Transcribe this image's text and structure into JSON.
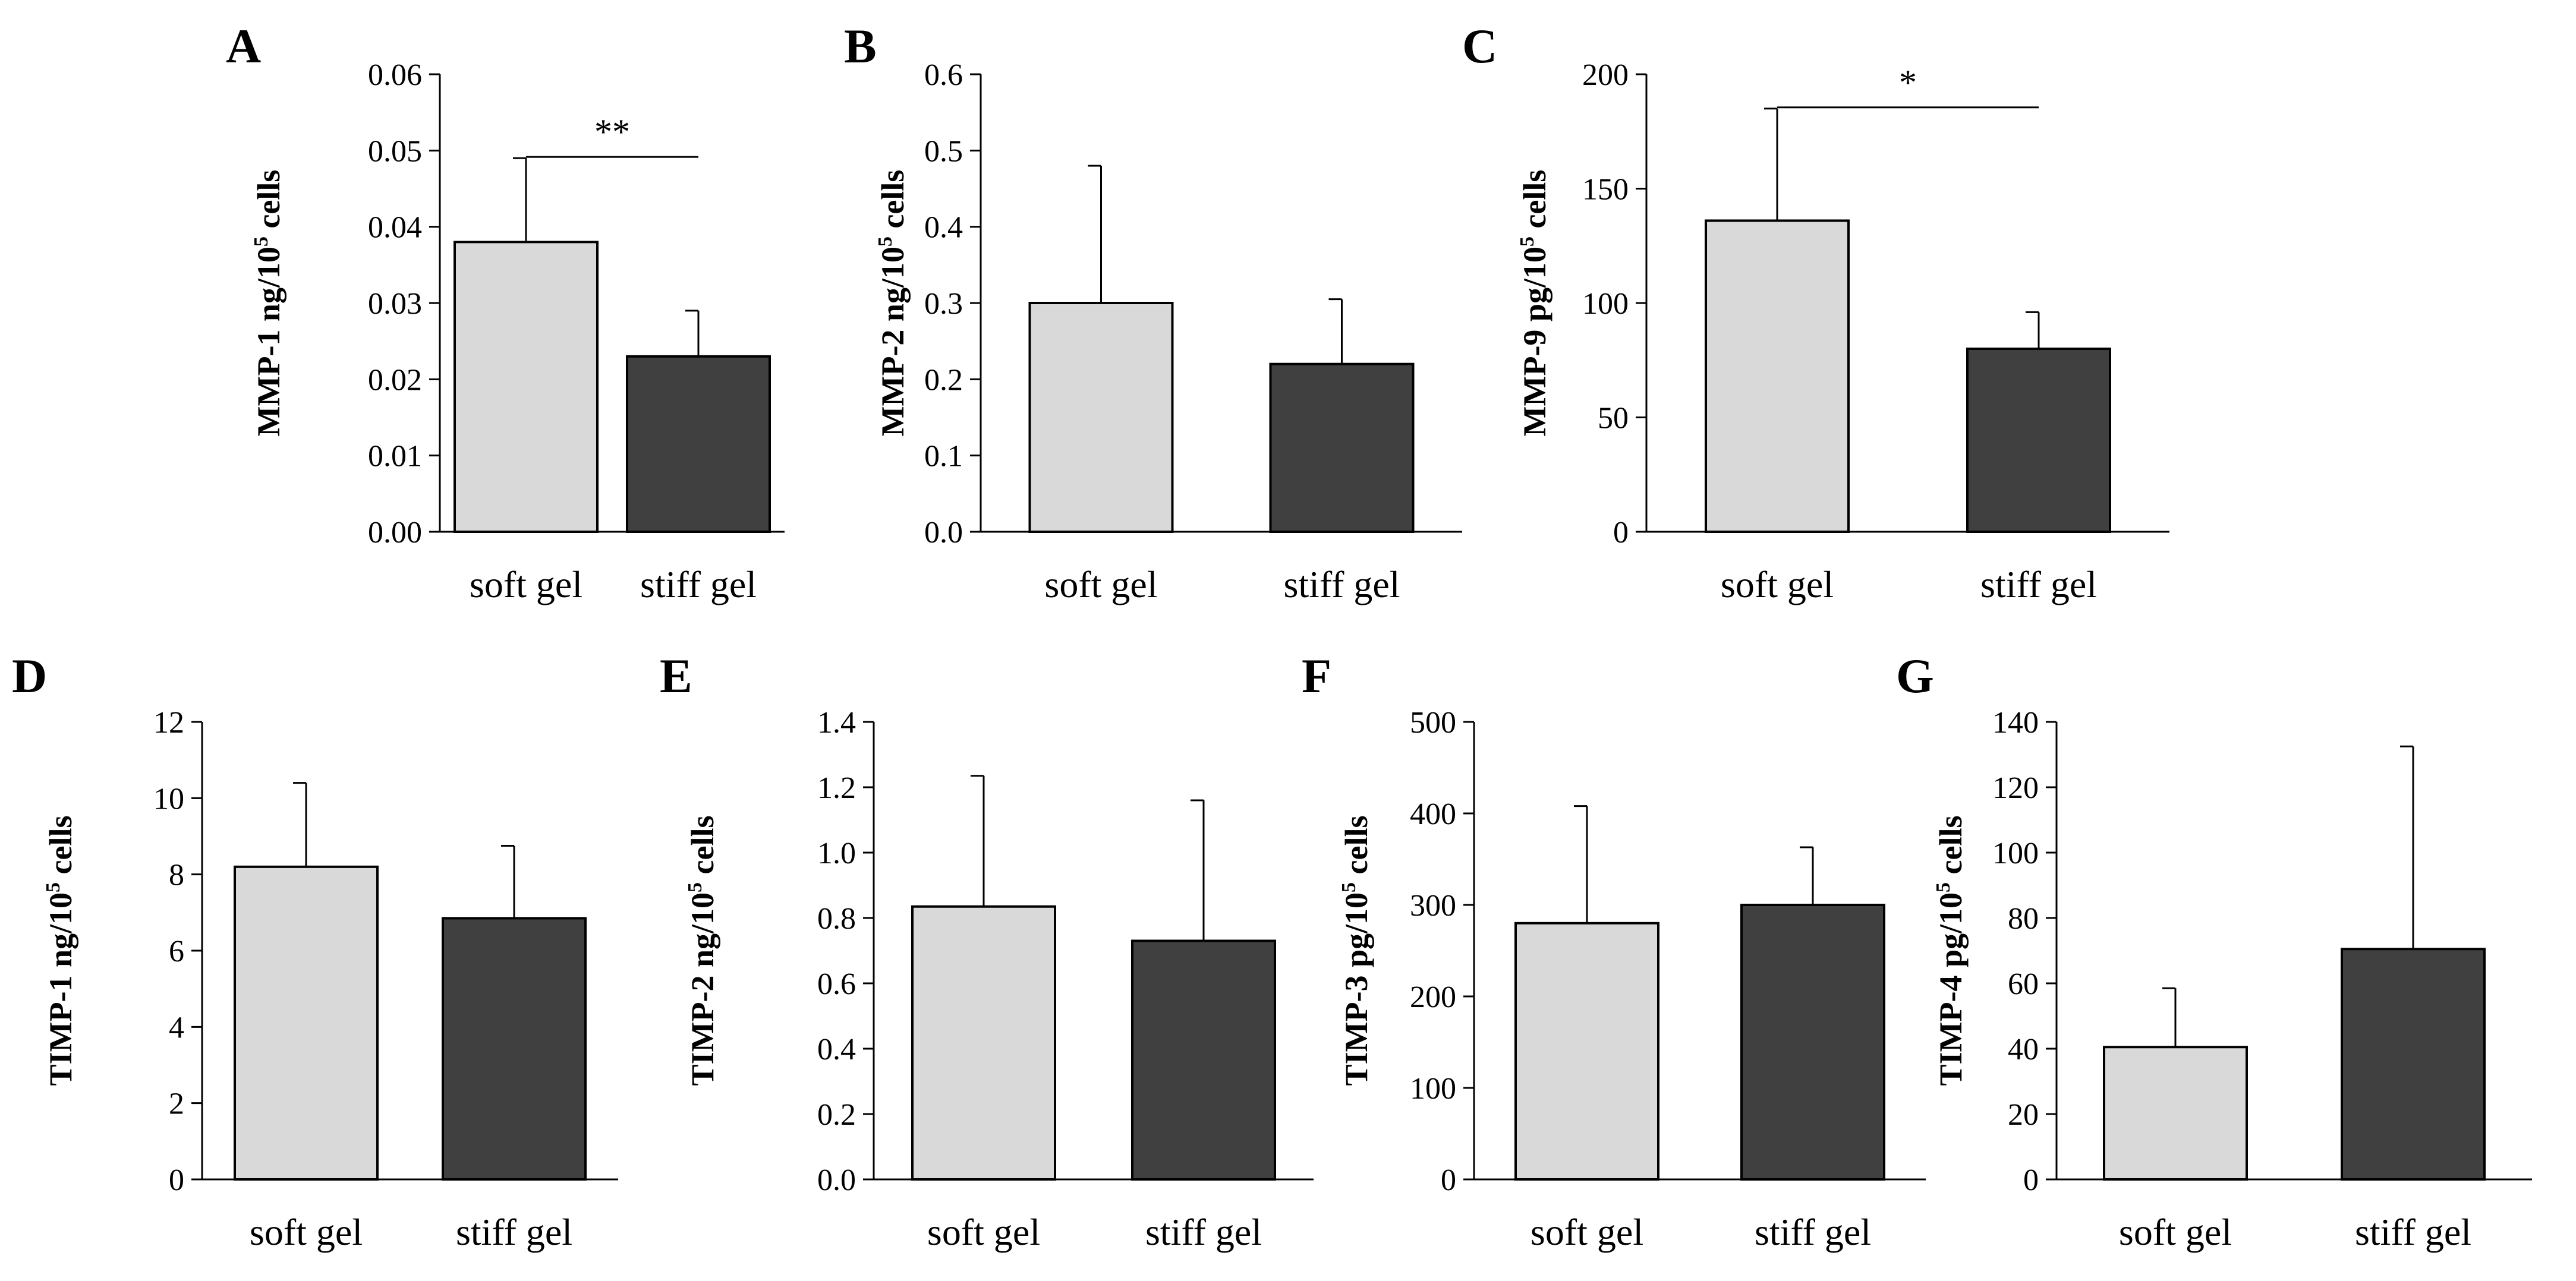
{
  "chart_data": [
    {
      "panel": "A",
      "type": "bar",
      "categories": [
        "soft gel",
        "stiff gel"
      ],
      "values": [
        0.038,
        0.023
      ],
      "errors": [
        0.011,
        0.006
      ],
      "ylabel": {
        "main": "MMP-1 ng/10",
        "sup": "5",
        "tail": " cells"
      },
      "ylim": [
        0,
        0.06
      ],
      "yticks": [
        "0.00",
        "0.01",
        "0.02",
        "0.03",
        "0.04",
        "0.05",
        "0.06"
      ],
      "significance": {
        "text": "**",
        "between": [
          0,
          1
        ]
      },
      "colors": [
        "#d9d9d9",
        "#404040"
      ]
    },
    {
      "panel": "B",
      "type": "bar",
      "categories": [
        "soft gel",
        "stiff gel"
      ],
      "values": [
        0.3,
        0.22
      ],
      "errors": [
        0.18,
        0.085
      ],
      "ylabel": {
        "main": "MMP-2 ng/10",
        "sup": "5",
        "tail": " cells"
      },
      "ylim": [
        0,
        0.6
      ],
      "yticks": [
        "0.0",
        "0.1",
        "0.2",
        "0.3",
        "0.4",
        "0.5",
        "0.6"
      ],
      "colors": [
        "#d9d9d9",
        "#404040"
      ]
    },
    {
      "panel": "C",
      "type": "bar",
      "categories": [
        "soft gel",
        "stiff gel"
      ],
      "values": [
        136,
        80
      ],
      "errors": [
        49,
        16
      ],
      "ylabel": {
        "main": "MMP-9 pg/10",
        "sup": "5",
        "tail": " cells"
      },
      "ylim": [
        0,
        200
      ],
      "yticks": [
        "0",
        "50",
        "100",
        "150",
        "200"
      ],
      "significance": {
        "text": "*",
        "between": [
          0,
          1
        ]
      },
      "colors": [
        "#d9d9d9",
        "#404040"
      ]
    },
    {
      "panel": "D",
      "type": "bar",
      "categories": [
        "soft gel",
        "stiff gel"
      ],
      "values": [
        8.2,
        6.85
      ],
      "errors": [
        2.2,
        1.9
      ],
      "ylabel": {
        "main": "TIMP-1 ng/10",
        "sup": "5",
        "tail": " cells"
      },
      "ylim": [
        0,
        12
      ],
      "yticks": [
        "0",
        "2",
        "4",
        "6",
        "8",
        "10",
        "12"
      ],
      "colors": [
        "#d9d9d9",
        "#404040"
      ]
    },
    {
      "panel": "E",
      "type": "bar",
      "categories": [
        "soft gel",
        "stiff gel"
      ],
      "values": [
        0.835,
        0.73
      ],
      "errors": [
        0.4,
        0.43
      ],
      "ylabel": {
        "main": "TIMP-2 ng/10",
        "sup": "5",
        "tail": " cells"
      },
      "ylim": [
        0,
        1.4
      ],
      "yticks": [
        "0.0",
        "0.2",
        "0.4",
        "0.6",
        "0.8",
        "1.0",
        "1.2",
        "1.4"
      ],
      "colors": [
        "#d9d9d9",
        "#404040"
      ]
    },
    {
      "panel": "F",
      "type": "bar",
      "categories": [
        "soft gel",
        "stiff gel"
      ],
      "values": [
        280,
        300
      ],
      "errors": [
        128,
        63
      ],
      "ylabel": {
        "main": "TIMP-3 pg/10",
        "sup": "5",
        "tail": " cells"
      },
      "ylim": [
        0,
        500
      ],
      "yticks": [
        "0",
        "100",
        "200",
        "300",
        "400",
        "500"
      ],
      "colors": [
        "#d9d9d9",
        "#404040"
      ]
    },
    {
      "panel": "G",
      "type": "bar",
      "categories": [
        "soft gel",
        "stiff gel"
      ],
      "values": [
        40.5,
        70.5
      ],
      "errors": [
        18,
        62
      ],
      "ylabel": {
        "main": "TIMP-4 pg/10",
        "sup": "5",
        "tail": " cells"
      },
      "ylim": [
        0,
        140
      ],
      "yticks": [
        "0",
        "20",
        "40",
        "60",
        "80",
        "100",
        "120",
        "140"
      ],
      "colors": [
        "#d9d9d9",
        "#404040"
      ]
    }
  ]
}
